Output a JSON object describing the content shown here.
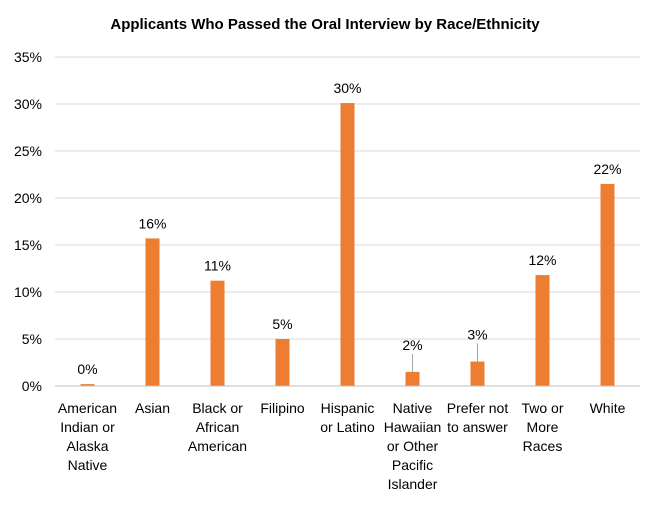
{
  "chart_data": {
    "type": "bar",
    "title": "Applicants Who Passed the Oral Interview by Race/Ethnicity",
    "xlabel": "",
    "ylabel": "",
    "ylim": [
      0,
      35
    ],
    "y_ticks": [
      "0%",
      "5%",
      "10%",
      "15%",
      "20%",
      "25%",
      "30%",
      "35%"
    ],
    "y_tick_values": [
      0,
      5,
      10,
      15,
      20,
      25,
      30,
      35
    ],
    "grid": true,
    "legend": "none",
    "bar_color": "#ED7D31",
    "categories": [
      [
        "American",
        "Indian or",
        "Alaska",
        "Native"
      ],
      [
        "Asian"
      ],
      [
        "Black or",
        "African",
        "American"
      ],
      [
        "Filipino"
      ],
      [
        "Hispanic",
        "or Latino"
      ],
      [
        "Native",
        "Hawaiian",
        "or Other",
        "Pacific",
        "Islander"
      ],
      [
        "Prefer not",
        "to answer"
      ],
      [
        "Two or",
        "More",
        "Races"
      ],
      [
        "White"
      ]
    ],
    "values": [
      0.2,
      15.7,
      11.2,
      5.0,
      30.1,
      1.5,
      2.6,
      11.8,
      21.5
    ],
    "data_labels": [
      "0%",
      "16%",
      "11%",
      "5%",
      "30%",
      "2%",
      "3%",
      "12%",
      "22%"
    ]
  }
}
